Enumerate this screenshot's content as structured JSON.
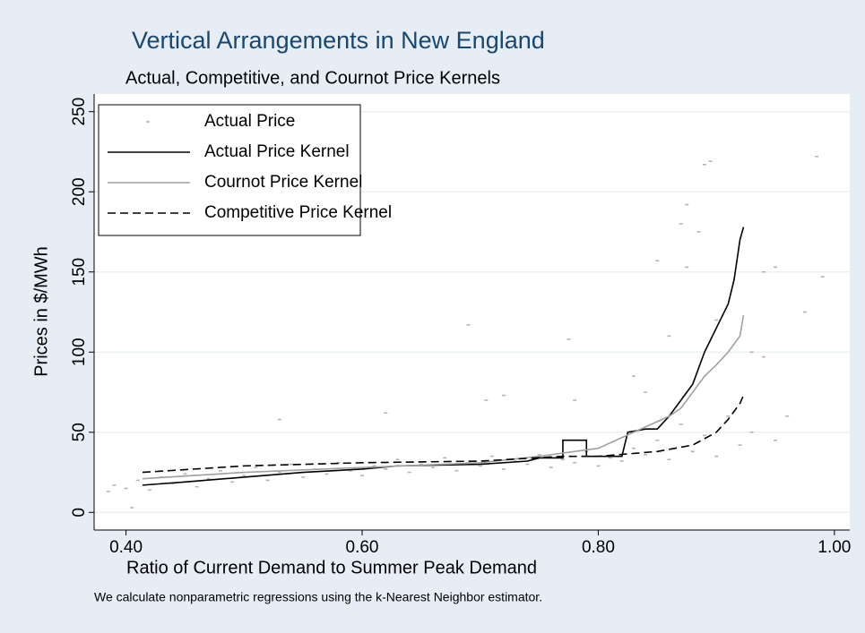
{
  "chart_data": {
    "type": "scatter-line",
    "title": "Vertical Arrangements in New England",
    "subtitle": "Actual, Competitive, and Cournot Price Kernels",
    "x_label": "Ratio of Current Demand to Summer Peak Demand",
    "y_label": "Prices in $/MWh",
    "note": "We calculate nonparametric regressions using the k-Nearest Neighbor estimator.",
    "xlim": [
      0.373,
      1.013
    ],
    "ylim": [
      -11,
      261
    ],
    "xticks": [
      {
        "value": 0.4,
        "label": "0.40"
      },
      {
        "value": 0.6,
        "label": "0.60"
      },
      {
        "value": 0.8,
        "label": "0.80"
      },
      {
        "value": 1.0,
        "label": "1.00"
      }
    ],
    "yticks": [
      0,
      50,
      100,
      150,
      200,
      250
    ],
    "grid": true,
    "legend": "top-left",
    "series": [
      {
        "name": "Actual Price",
        "kind": "scatter",
        "color": "#b4b4b4",
        "x": [
          0.4,
          0.41,
          0.42,
          0.43,
          0.44,
          0.45,
          0.46,
          0.47,
          0.48,
          0.49,
          0.5,
          0.51,
          0.52,
          0.53,
          0.54,
          0.55,
          0.56,
          0.57,
          0.58,
          0.59,
          0.6,
          0.61,
          0.62,
          0.63,
          0.64,
          0.65,
          0.66,
          0.67,
          0.68,
          0.69,
          0.7,
          0.71,
          0.72,
          0.73,
          0.74,
          0.75,
          0.76,
          0.77,
          0.78,
          0.79,
          0.8,
          0.81,
          0.82,
          0.83,
          0.84,
          0.85,
          0.86,
          0.87,
          0.88,
          0.89,
          0.9,
          0.91,
          0.92,
          0.93,
          0.895,
          0.89,
          0.985,
          0.875,
          0.87,
          0.885,
          0.85,
          0.875,
          0.95,
          0.94,
          0.99,
          0.975,
          0.69,
          0.775,
          0.86,
          0.9,
          0.93,
          0.94,
          0.83,
          0.72,
          0.705,
          0.84,
          0.78,
          0.53,
          0.62,
          0.96,
          0.95,
          0.39,
          0.385,
          0.405
        ],
        "values": [
          15,
          20,
          14,
          22,
          18,
          24,
          16,
          21,
          26,
          19,
          23,
          28,
          20,
          25,
          30,
          22,
          27,
          24,
          31,
          26,
          23,
          29,
          27,
          33,
          25,
          30,
          28,
          34,
          26,
          31,
          29,
          35,
          27,
          32,
          30,
          36,
          28,
          33,
          31,
          38,
          29,
          34,
          32,
          40,
          36,
          45,
          33,
          55,
          38,
          48,
          35,
          60,
          42,
          50,
          219,
          217,
          222,
          192,
          180,
          175,
          157,
          153,
          153,
          150,
          147,
          125,
          117,
          108,
          110,
          120,
          100,
          97,
          85,
          73,
          70,
          75,
          70,
          58,
          62,
          60,
          45,
          17,
          13,
          3
        ]
      },
      {
        "name": "Actual Price Kernel",
        "kind": "line",
        "color": "#000000",
        "dash": false,
        "x": [
          0.414,
          0.45,
          0.5,
          0.55,
          0.6,
          0.63,
          0.7,
          0.74,
          0.75,
          0.77,
          0.77,
          0.79,
          0.79,
          0.82,
          0.825,
          0.84,
          0.85,
          0.86,
          0.87,
          0.88,
          0.89,
          0.9,
          0.91,
          0.915,
          0.92,
          0.923
        ],
        "values": [
          17,
          19,
          22,
          25,
          27,
          29,
          30,
          32,
          34,
          34,
          45,
          45,
          35,
          35,
          50,
          52,
          52,
          60,
          70,
          80,
          100,
          115,
          130,
          145,
          170,
          178
        ]
      },
      {
        "name": "Cournot Price Kernel",
        "kind": "line",
        "color": "#a0a0a0",
        "dash": false,
        "x": [
          0.414,
          0.5,
          0.6,
          0.7,
          0.75,
          0.8,
          0.83,
          0.86,
          0.87,
          0.88,
          0.89,
          0.9,
          0.91,
          0.92,
          0.923
        ],
        "values": [
          21,
          25,
          28,
          31,
          35,
          40,
          50,
          60,
          65,
          75,
          85,
          92,
          100,
          110,
          123
        ]
      },
      {
        "name": "Competitive Price Kernel",
        "kind": "line",
        "color": "#000000",
        "dash": true,
        "x": [
          0.414,
          0.5,
          0.6,
          0.7,
          0.77,
          0.8,
          0.85,
          0.88,
          0.9,
          0.91,
          0.92,
          0.923
        ],
        "values": [
          25,
          29,
          31,
          32,
          35,
          35,
          38,
          42,
          50,
          58,
          68,
          73
        ]
      }
    ]
  }
}
